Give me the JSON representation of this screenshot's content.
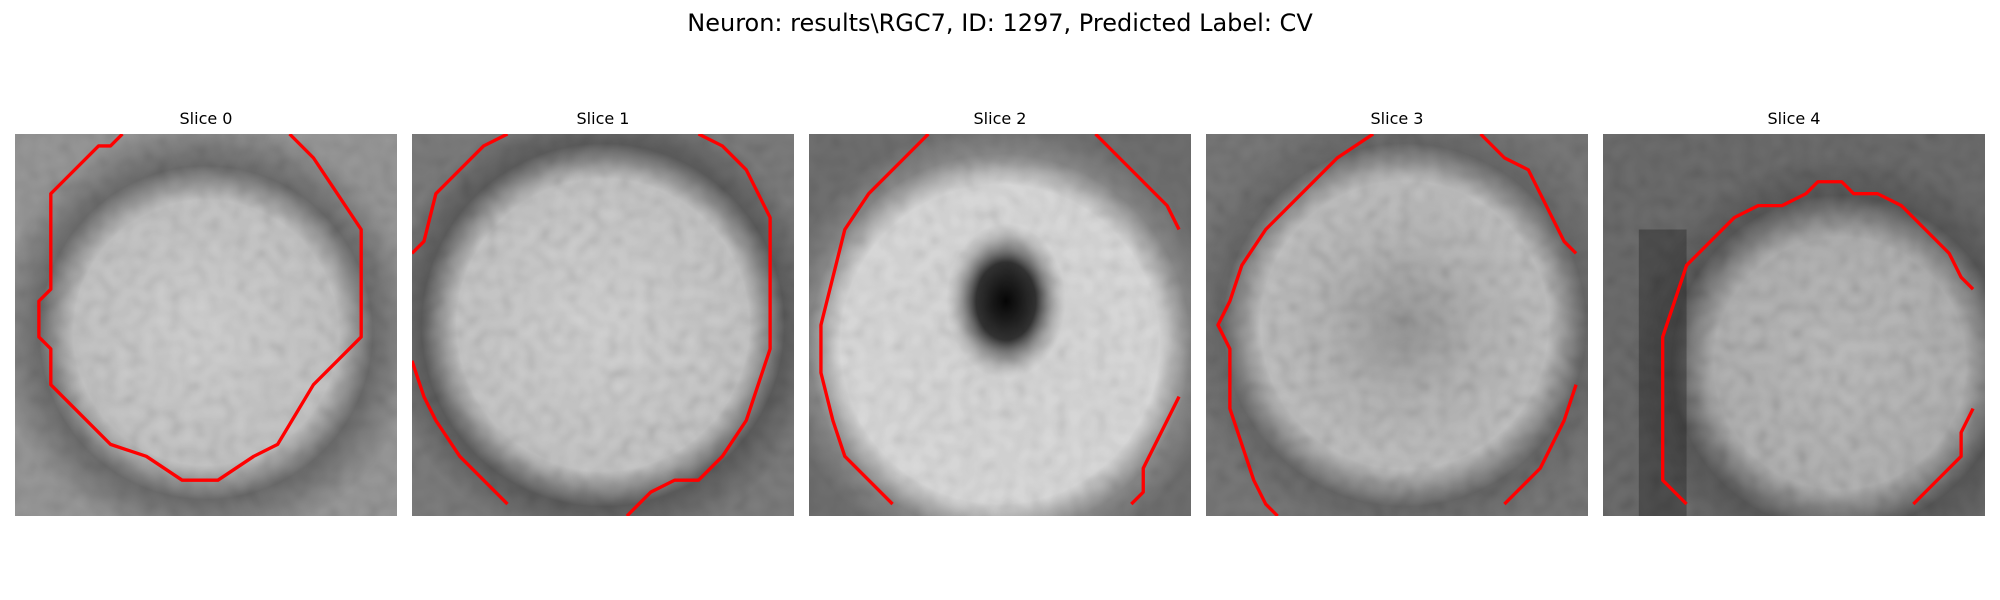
{
  "figure": {
    "title": "Neuron: results\\RGC7, ID: 1297, Predicted Label: CV",
    "contour_color": "#ff0000"
  },
  "slices": [
    {
      "label": "Slice 0"
    },
    {
      "label": "Slice 1"
    },
    {
      "label": "Slice 2"
    },
    {
      "label": "Slice 3"
    },
    {
      "label": "Slice 4"
    }
  ]
}
